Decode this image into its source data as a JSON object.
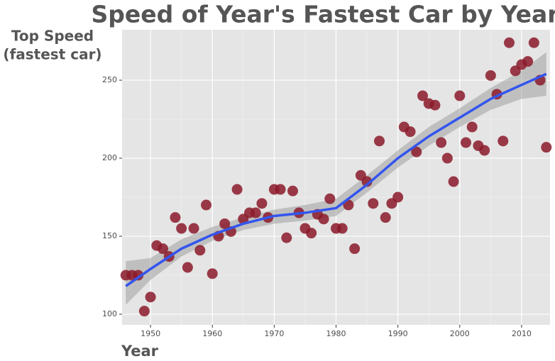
{
  "chart_data": {
    "type": "scatter",
    "title": "Speed of Year's Fastest Car by Year",
    "xlabel": "Year",
    "ylabel": [
      "Top Speed",
      "(fastest car)"
    ],
    "xlim": [
      1945.4,
      2014.6
    ],
    "ylim": [
      93.2,
      282.3
    ],
    "xticks": [
      1950,
      1960,
      1970,
      1980,
      1990,
      2000,
      2010
    ],
    "yticks": [
      100,
      150,
      200,
      250
    ],
    "grid": true,
    "series": [
      {
        "color": "#8b1a2a",
        "x": [
          1946,
          1947,
          1948,
          1949,
          1950,
          1951,
          1952,
          1953,
          1954,
          1955,
          1956,
          1957,
          1958,
          1959,
          1960,
          1961,
          1962,
          1963,
          1964,
          1965,
          1966,
          1967,
          1968,
          1969,
          1970,
          1971,
          1972,
          1973,
          1974,
          1975,
          1976,
          1977,
          1978,
          1979,
          1980,
          1981,
          1982,
          1983,
          1984,
          1985,
          1986,
          1987,
          1988,
          1989,
          1990,
          1991,
          1992,
          1993,
          1994,
          1995,
          1996,
          1997,
          1998,
          1999,
          2000,
          2001,
          2002,
          2003,
          2004,
          2005,
          2006,
          2007,
          2008,
          2009,
          2010,
          2011,
          2012,
          2013,
          2014
        ],
        "values": [
          125,
          125,
          125,
          102,
          111,
          144,
          142,
          137,
          162,
          155,
          130,
          155,
          141,
          170,
          126,
          150,
          158,
          153,
          180,
          161,
          165,
          165,
          171,
          162,
          180,
          180,
          149,
          179,
          165,
          155,
          152,
          164,
          161,
          174,
          155,
          155,
          170,
          142,
          189,
          185,
          171,
          211,
          162,
          171,
          175,
          220,
          217,
          204,
          240,
          235,
          234,
          210,
          200,
          185,
          240,
          210,
          220,
          208,
          205,
          253,
          241,
          211,
          274,
          256,
          260,
          262,
          274,
          250,
          207
        ]
      }
    ],
    "smooth": {
      "color": "#3355ee",
      "band_color": "#999999",
      "x": [
        1946,
        1950,
        1955,
        1960,
        1965,
        1970,
        1975,
        1980,
        1985,
        1990,
        1995,
        2000,
        2005,
        2010,
        2014
      ],
      "values": [
        118,
        129,
        142,
        151,
        158,
        163,
        165,
        168,
        183,
        200,
        214,
        226,
        238,
        247,
        254
      ],
      "lower": [
        106,
        122,
        137,
        147,
        154,
        158,
        160,
        163,
        178,
        194,
        208,
        220,
        231,
        238,
        240
      ],
      "upper": [
        134,
        136,
        148,
        156,
        162,
        167,
        170,
        174,
        189,
        205,
        220,
        232,
        245,
        256,
        268
      ]
    }
  }
}
